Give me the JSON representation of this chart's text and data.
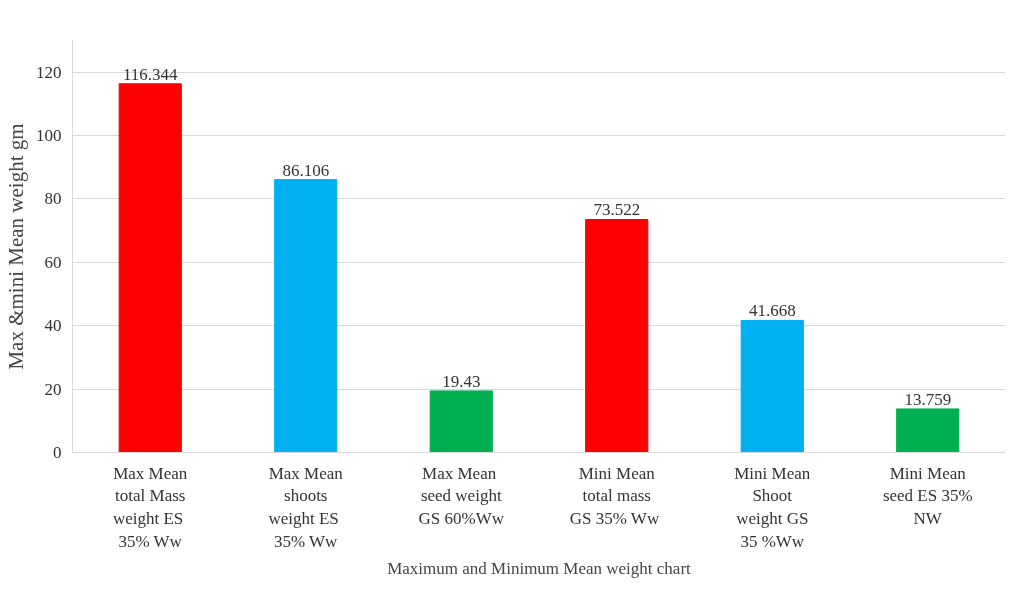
{
  "chart_data": {
    "type": "bar",
    "xlabel": "Maximum and Minimum Mean weight chart",
    "ylabel": "Max &mini Mean weight gm",
    "categories": [
      "Max Mean total Mass weight  ES 35% Ww",
      "Max Mean shoots weight  ES 35% Ww",
      "Max  Mean seed weight GS 60%Ww",
      "Mini Mean total mass GS  35% Ww",
      "Mini Mean Shoot weight GS 35 %Ww",
      "Mini Mean seed ES 35% NW"
    ],
    "values": [
      116.344,
      86.106,
      19.43,
      73.522,
      41.668,
      13.759
    ],
    "colors": [
      "#ff0000",
      "#00b0f0",
      "#00b050",
      "#ff0000",
      "#00b0f0",
      "#00b050"
    ],
    "ylim": [
      0,
      130
    ],
    "yticks": [
      0,
      20,
      40,
      60,
      80,
      100,
      120
    ],
    "grid": "y",
    "data_labels": true
  }
}
